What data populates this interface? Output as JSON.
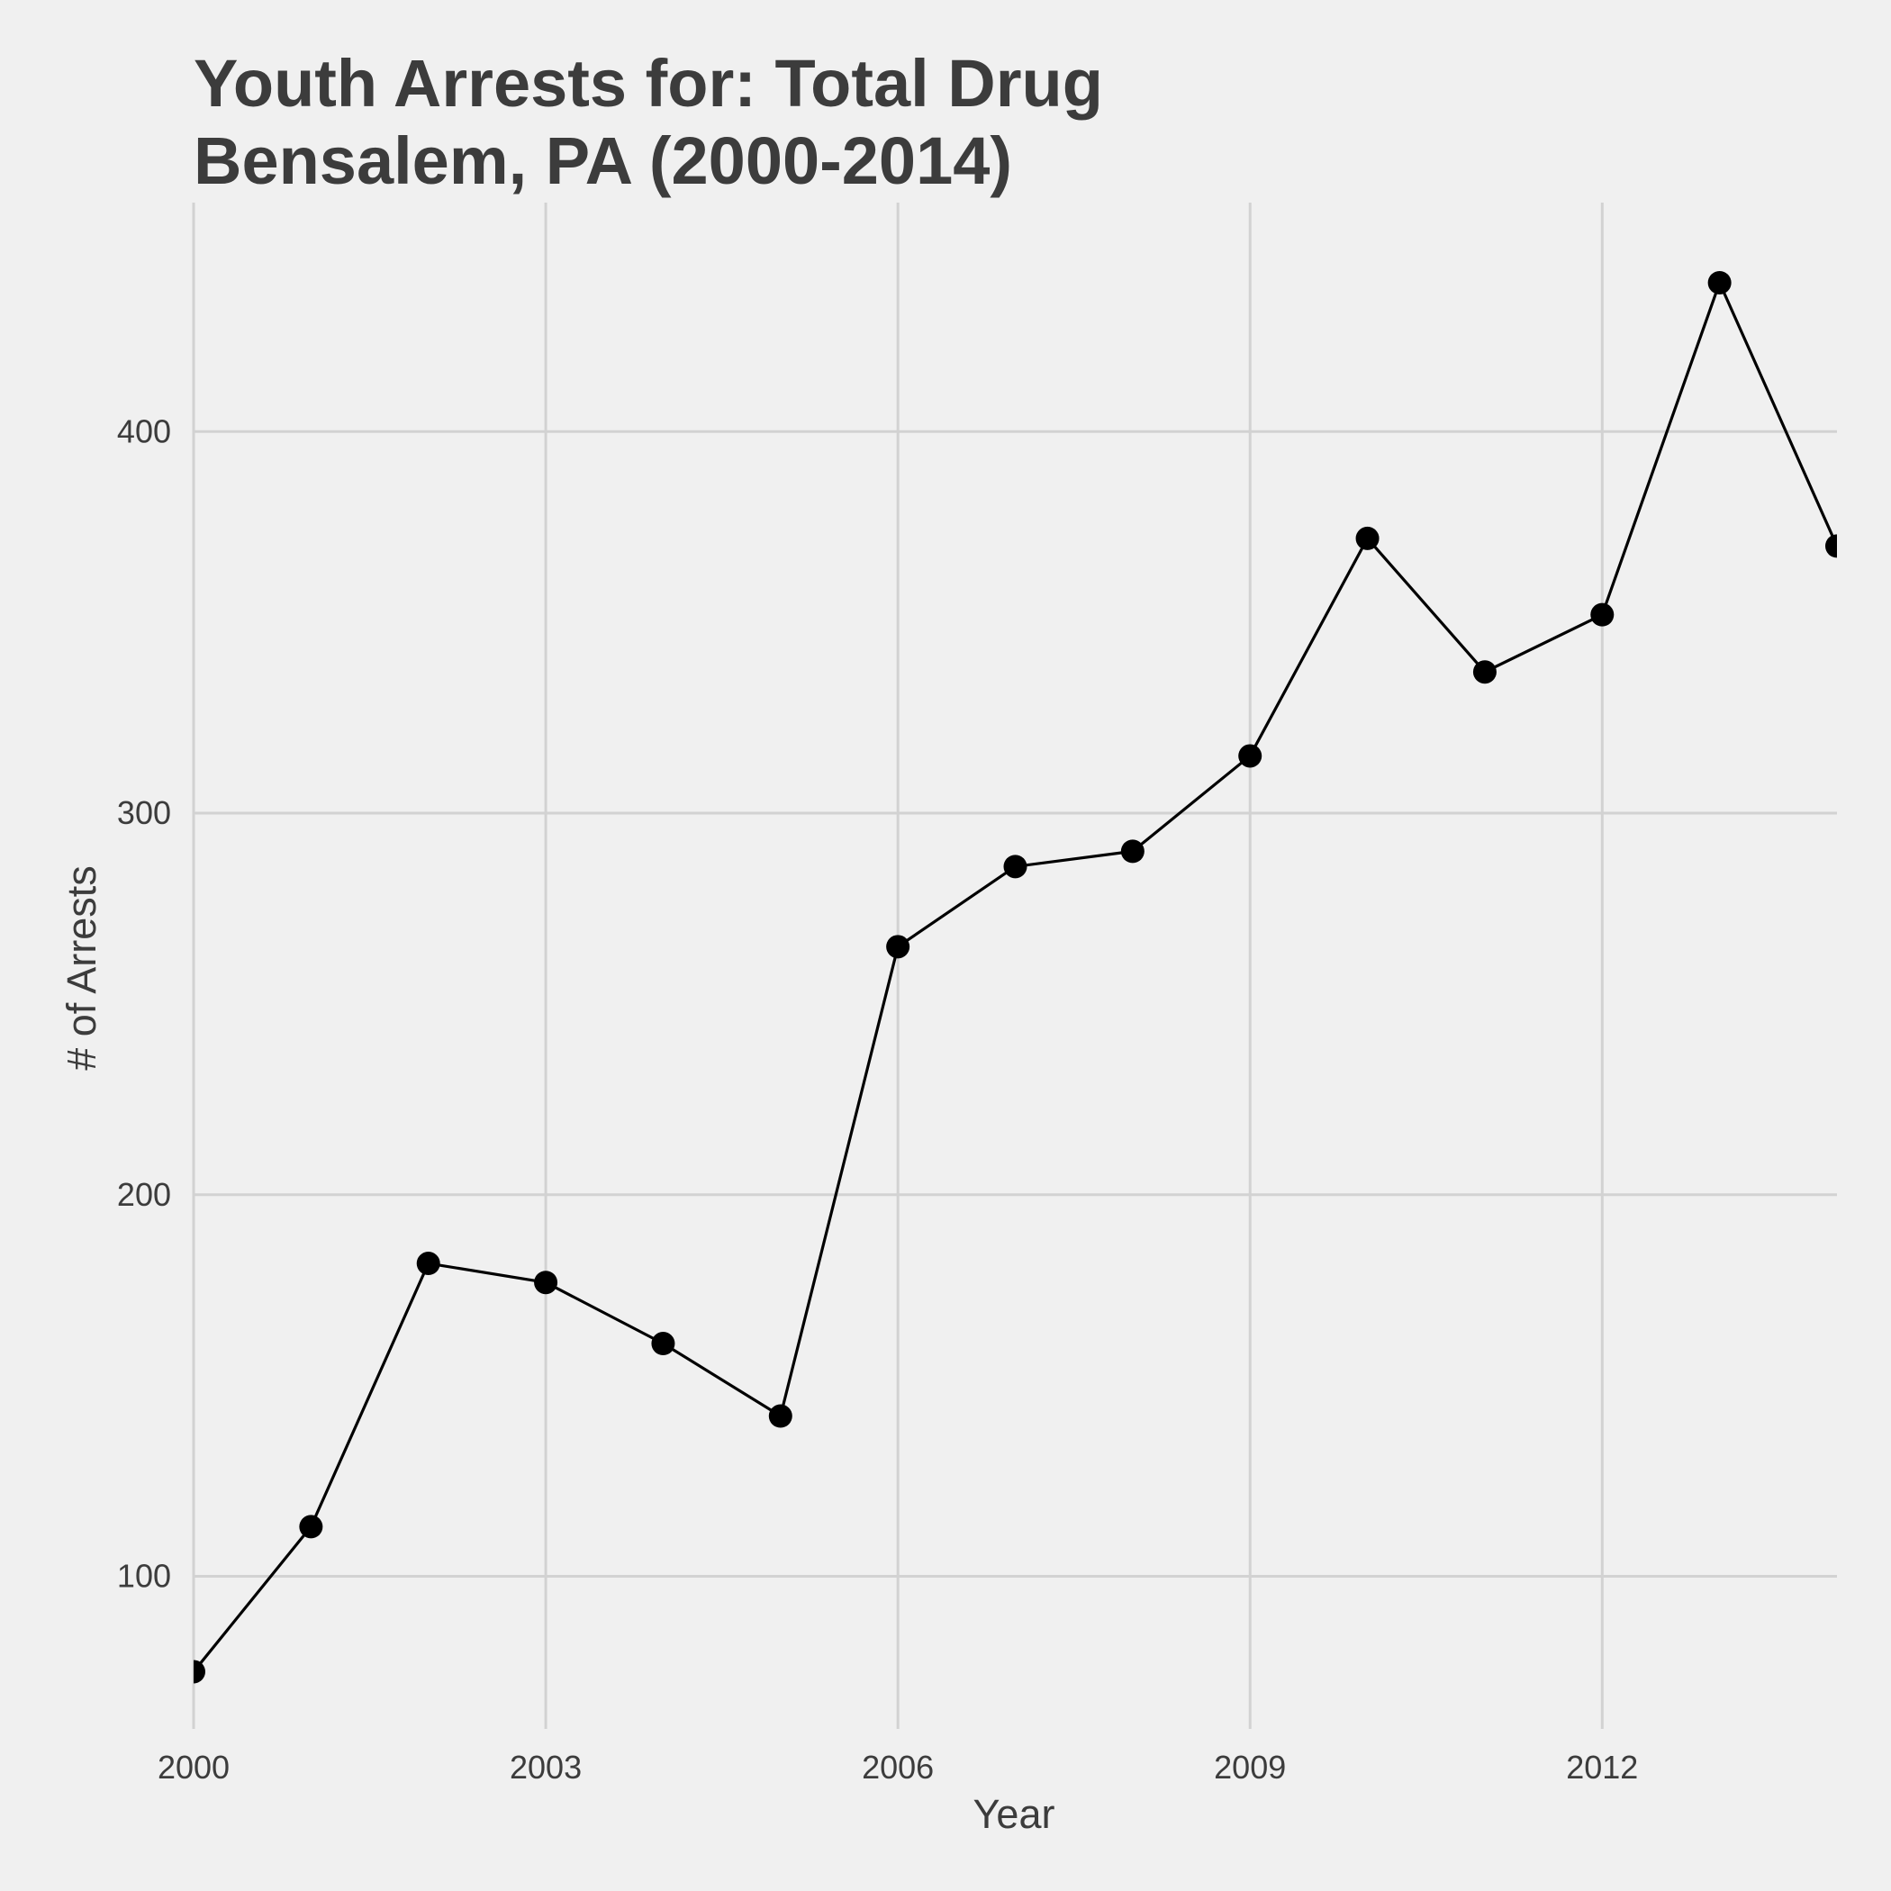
{
  "chart_data": {
    "type": "line",
    "title": "Youth Arrests for: Total Drug",
    "subtitle": "Bensalem, PA (2000-2014)",
    "xlabel": "Year",
    "ylabel": "# of Arrests",
    "x": [
      2000,
      2001,
      2002,
      2003,
      2004,
      2005,
      2006,
      2007,
      2008,
      2009,
      2010,
      2011,
      2012,
      2013,
      2014
    ],
    "series": [
      {
        "values": [
          75,
          113,
          182,
          177,
          161,
          142,
          265,
          286,
          290,
          315,
          372,
          337,
          352,
          439,
          370
        ]
      }
    ],
    "x_ticks": [
      "2000",
      "2003",
      "2006",
      "2009",
      "2012"
    ],
    "y_ticks": [
      "100",
      "200",
      "300",
      "400"
    ],
    "xlim": [
      2000,
      2014
    ],
    "ylim": [
      60,
      460
    ],
    "grid": true,
    "legend": "none",
    "colors": {
      "background": "#f0f0f0",
      "grid": "#d2d2d2",
      "line": "#000000",
      "text": "#3c3c3c"
    }
  }
}
